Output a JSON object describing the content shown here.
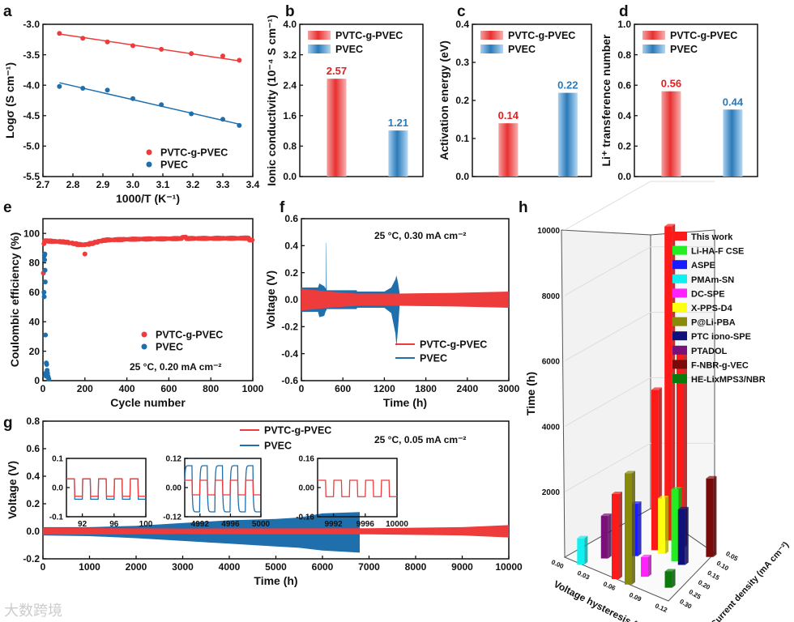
{
  "watermark": "大数跨境",
  "colors": {
    "red": "#ee3b3b",
    "blue": "#1f6fad",
    "red_label": "#e02020",
    "blue_label": "#2a7ab8"
  },
  "chart_data": [
    {
      "panel": "a",
      "type": "scatter",
      "xlabel": "1000/T (K⁻¹)",
      "ylabel": "Logσ  (S cm⁻¹)",
      "xlim": [
        2.7,
        3.4
      ],
      "ylim": [
        -5.5,
        -3.0
      ],
      "xticks": [
        "2.7",
        "2.8",
        "2.9",
        "3.0",
        "3.1",
        "3.2",
        "3.3",
        "3.4"
      ],
      "yticks": [
        "-5.5",
        "-5.0",
        "-4.5",
        "-4.0",
        "-3.5",
        "-3.0"
      ],
      "legend": "bottom-right",
      "x": [
        2.755,
        2.833,
        2.915,
        3.0,
        3.095,
        3.195,
        3.3,
        3.355
      ],
      "series": [
        {
          "name": "PVTC-g-PVEC",
          "values": [
            -3.15,
            -3.23,
            -3.29,
            -3.35,
            -3.41,
            -3.48,
            -3.52,
            -3.59
          ],
          "fit": [
            -3.16,
            -3.6
          ]
        },
        {
          "name": "PVEC",
          "values": [
            -4.02,
            -4.05,
            -4.08,
            -4.22,
            -4.32,
            -4.47,
            -4.56,
            -4.66
          ],
          "fit": [
            -3.96,
            -4.64
          ]
        }
      ]
    },
    {
      "panel": "b",
      "type": "bar",
      "ylabel": "Ionic conductivity (10⁻⁴ S cm⁻¹)",
      "ylim": [
        0,
        4.0
      ],
      "yticks": [
        "0.0",
        "0.8",
        "1.6",
        "2.4",
        "3.2",
        "4.0"
      ],
      "categories": [
        "PVTC-g-PVEC",
        "PVEC"
      ],
      "values": [
        2.57,
        1.21
      ],
      "labels": [
        "2.57",
        "1.21"
      ],
      "legend": "top"
    },
    {
      "panel": "c",
      "type": "bar",
      "ylabel": "Activation energy (eV)",
      "ylim": [
        0,
        0.4
      ],
      "yticks": [
        "0.0",
        "0.1",
        "0.2",
        "0.3",
        "0.4"
      ],
      "categories": [
        "PVTC-g-PVEC",
        "PVEC"
      ],
      "values": [
        0.14,
        0.22
      ],
      "labels": [
        "0.14",
        "0.22"
      ],
      "legend": "top"
    },
    {
      "panel": "d",
      "type": "bar",
      "ylabel": "Li⁺ transference number",
      "ylim": [
        0,
        1.0
      ],
      "yticks": [
        "0.0",
        "0.2",
        "0.4",
        "0.6",
        "0.8",
        "1.0"
      ],
      "categories": [
        "PVTC-g-PVEC",
        "PVEC"
      ],
      "values": [
        0.56,
        0.44
      ],
      "labels": [
        "0.56",
        "0.44"
      ],
      "legend": "top"
    },
    {
      "panel": "e",
      "type": "scatter",
      "xlabel": "Cycle number",
      "ylabel": "Coulombic efficiency (%)",
      "xlim": [
        0,
        1000
      ],
      "ylim": [
        0,
        110
      ],
      "xticks": [
        "0",
        "200",
        "400",
        "600",
        "800",
        "1000"
      ],
      "yticks": [
        "0",
        "20",
        "40",
        "60",
        "80",
        "100"
      ],
      "annotation": "25 °C, 0.20 mA cm⁻²",
      "legend": "bottom-right",
      "series": [
        {
          "name": "PVTC-g-PVEC",
          "x": [
            2,
            5,
            10,
            20,
            40,
            60,
            80,
            100,
            120,
            140,
            160,
            180,
            200,
            200,
            220,
            240,
            260,
            280,
            300,
            340,
            380,
            420,
            460,
            500,
            540,
            580,
            620,
            660,
            680,
            700,
            740,
            780,
            820,
            860,
            900,
            940,
            980,
            995
          ],
          "y": [
            73,
            93,
            95,
            95,
            94.8,
            94.6,
            94.5,
            94.3,
            94,
            93.5,
            93,
            92.5,
            92.3,
            86,
            92.6,
            93.2,
            94,
            94.8,
            95.3,
            95.6,
            95.8,
            96,
            96.1,
            96.2,
            96.3,
            96.3,
            96.4,
            96.5,
            97.5,
            96.5,
            96.6,
            96.6,
            96.6,
            96.7,
            96.7,
            96.7,
            96.8,
            95.5
          ]
        },
        {
          "name": "PVEC",
          "x": [
            5,
            6,
            7,
            8,
            9,
            10,
            11,
            12,
            13,
            14,
            15,
            16,
            18,
            20,
            22,
            24,
            26,
            28
          ],
          "y": [
            60,
            57,
            85,
            82,
            86,
            75,
            67,
            31,
            5,
            4,
            3,
            12,
            11,
            7,
            5,
            3,
            2,
            1
          ]
        }
      ]
    },
    {
      "panel": "f",
      "type": "area",
      "xlabel": "Time (h)",
      "ylabel": "Voltage (V)",
      "xlim": [
        0,
        3000
      ],
      "ylim": [
        -0.6,
        0.6
      ],
      "xticks": [
        "0",
        "600",
        "1200",
        "1800",
        "2400",
        "3000"
      ],
      "yticks": [
        "-0.6",
        "-0.4",
        "-0.2",
        "0.0",
        "0.2",
        "0.4",
        "0.6"
      ],
      "annotation": "25 °C, 0.30 mA cm⁻²",
      "legend": "bottom-right",
      "series": [
        {
          "name": "PVEC",
          "envelope": [
            [
              0,
              0.09,
              -0.09
            ],
            [
              240,
              0.09,
              -0.09
            ],
            [
              260,
              0.12,
              -0.13
            ],
            [
              330,
              0.1,
              -0.12
            ],
            [
              355,
              0.08,
              -0.08
            ],
            [
              358,
              0.42,
              -0.08
            ],
            [
              362,
              0.42,
              -0.08
            ],
            [
              366,
              0.07,
              -0.07
            ],
            [
              800,
              0.07,
              -0.07
            ],
            [
              805,
              0.06,
              -0.06
            ],
            [
              1200,
              0.06,
              -0.06
            ],
            [
              1300,
              0.09,
              -0.1
            ],
            [
              1360,
              0.15,
              -0.25
            ],
            [
              1375,
              0.18,
              -0.35
            ],
            [
              1400,
              0.12,
              -0.2
            ],
            [
              1420,
              0.05,
              -0.05
            ]
          ]
        },
        {
          "name": "PVTC-g-PVEC",
          "envelope": [
            [
              0,
              0.08,
              -0.08
            ],
            [
              400,
              0.06,
              -0.06
            ],
            [
              800,
              0.045,
              -0.045
            ],
            [
              1400,
              0.045,
              -0.045
            ],
            [
              2200,
              0.05,
              -0.05
            ],
            [
              3000,
              0.06,
              -0.06
            ]
          ]
        }
      ]
    },
    {
      "panel": "g",
      "type": "area",
      "xlabel": "Time (h)",
      "ylabel": "Voltage (V)",
      "xlim": [
        0,
        10000
      ],
      "ylim": [
        -0.2,
        0.8
      ],
      "xticks": [
        "0",
        "1000",
        "2000",
        "3000",
        "4000",
        "5000",
        "6000",
        "7000",
        "8000",
        "9000",
        "10000"
      ],
      "yticks": [
        "-0.2",
        "0.0",
        "0.2",
        "0.4",
        "0.6",
        "0.8"
      ],
      "annotation": "25 °C, 0.05 mA cm⁻²",
      "legend": "top-center",
      "series": [
        {
          "name": "PVEC",
          "envelope": [
            [
              0,
              0.03,
              -0.03
            ],
            [
              1000,
              0.03,
              -0.035
            ],
            [
              2000,
              0.04,
              -0.05
            ],
            [
              3000,
              0.06,
              -0.07
            ],
            [
              4000,
              0.08,
              -0.09
            ],
            [
              5000,
              0.09,
              -0.11
            ],
            [
              5500,
              0.1,
              -0.12
            ],
            [
              6000,
              0.13,
              -0.14
            ],
            [
              6800,
              0.14,
              -0.155
            ],
            [
              6801,
              0,
              0
            ]
          ]
        },
        {
          "name": "PVTC-g-PVEC",
          "envelope": [
            [
              0,
              0.025,
              -0.025
            ],
            [
              3000,
              0.02,
              -0.02
            ],
            [
              7000,
              0.022,
              -0.022
            ],
            [
              9000,
              0.03,
              -0.03
            ],
            [
              10000,
              0.045,
              -0.045
            ]
          ]
        }
      ],
      "insets": [
        {
          "xlim": [
            90,
            100
          ],
          "ylim": [
            -0.1,
            0.1
          ],
          "xticks": [
            "92",
            "96",
            "100"
          ],
          "yticks": [
            "-0.1",
            "0.0",
            "0.1"
          ],
          "period": 2,
          "red": [
            0.03,
            -0.03
          ],
          "blue": [
            0.03,
            -0.04
          ]
        },
        {
          "xlim": [
            4990,
            5000
          ],
          "ylim": [
            -0.12,
            0.12
          ],
          "xticks": [
            "4992",
            "4996",
            "5000"
          ],
          "yticks": [
            "-0.12",
            "0.00",
            "0.12"
          ],
          "period": 2,
          "red": [
            0.03,
            -0.03
          ],
          "blue": [
            0.09,
            -0.1
          ]
        },
        {
          "xlim": [
            9990,
            10000
          ],
          "ylim": [
            -0.16,
            0.16
          ],
          "xticks": [
            "9992",
            "9996",
            "10000"
          ],
          "yticks": [
            "-0.16",
            "0.00",
            "0.16"
          ],
          "period": 2,
          "red": [
            0.04,
            -0.05
          ],
          "blue": null
        }
      ]
    },
    {
      "panel": "h",
      "type": "bar3d",
      "zlabel": "Time (h)",
      "xlabel": "Voltage hysteresis (V)",
      "ylabel": "Current density (mA cm⁻²)",
      "zticks": [
        "2000",
        "4000",
        "6000",
        "8000",
        "10000"
      ],
      "xticks": [
        "0.00",
        "0.03",
        "0.06",
        "0.09",
        "0.12"
      ],
      "yticks": [
        "0.05",
        "0.10",
        "0.15",
        "0.20",
        "0.25",
        "0.30"
      ],
      "legend": [
        {
          "name": "This work",
          "color": "#ff1a1a"
        },
        {
          "name": "Li-HA-F CSE",
          "color": "#22ee22"
        },
        {
          "name": "ASPE",
          "color": "#1a1aff"
        },
        {
          "name": "PMAm-SN",
          "color": "#11f0f0"
        },
        {
          "name": "DC-SPE",
          "color": "#ff22ff"
        },
        {
          "name": "X-PPS-D4",
          "color": "#ffff11"
        },
        {
          "name": "P@Li-PBA",
          "color": "#8a8a0a"
        },
        {
          "name": "PTC iono-SPE",
          "color": "#10107a"
        },
        {
          "name": "PTADOL",
          "color": "#7a107a"
        },
        {
          "name": "F-NBR-g-VEC",
          "color": "#7a0a0a"
        },
        {
          "name": "HE-LixMPS3/NBR",
          "color": "#0a7a0a"
        }
      ],
      "bars": [
        {
          "series": "PMAm-SN",
          "hysteresis": 0.02,
          "current": 0.3,
          "time": 800
        },
        {
          "series": "PTADOL",
          "hysteresis": 0.03,
          "current": 0.25,
          "time": 1300
        },
        {
          "series": "ASPE",
          "hysteresis": 0.05,
          "current": 0.2,
          "time": 1600
        },
        {
          "series": "This work",
          "hysteresis": 0.06,
          "current": 0.15,
          "time": 4900
        },
        {
          "series": "X-PPS-D4",
          "hysteresis": 0.07,
          "current": 0.15,
          "time": 1700
        },
        {
          "series": "This work",
          "hysteresis": 0.06,
          "current": 0.1,
          "time": 9600
        },
        {
          "series": "This work",
          "hysteresis": 0.08,
          "current": 0.1,
          "time": 6000
        },
        {
          "series": "F-NBR-g-VEC",
          "hysteresis": 0.12,
          "current": 0.07,
          "time": 2400
        },
        {
          "series": "PTC iono-SPE",
          "hysteresis": 0.1,
          "current": 0.15,
          "time": 1700
        },
        {
          "series": "Li-HA-F CSE",
          "hysteresis": 0.09,
          "current": 0.15,
          "time": 2200
        },
        {
          "series": "DC-SPE",
          "hysteresis": 0.08,
          "current": 0.25,
          "time": 600
        },
        {
          "series": "HE-LixMPS3/NBR",
          "hysteresis": 0.11,
          "current": 0.25,
          "time": 500
        },
        {
          "series": "This work",
          "hysteresis": 0.06,
          "current": 0.3,
          "time": 2600
        },
        {
          "series": "P@Li-PBA",
          "hysteresis": 0.075,
          "current": 0.3,
          "time": 3400
        }
      ]
    }
  ]
}
